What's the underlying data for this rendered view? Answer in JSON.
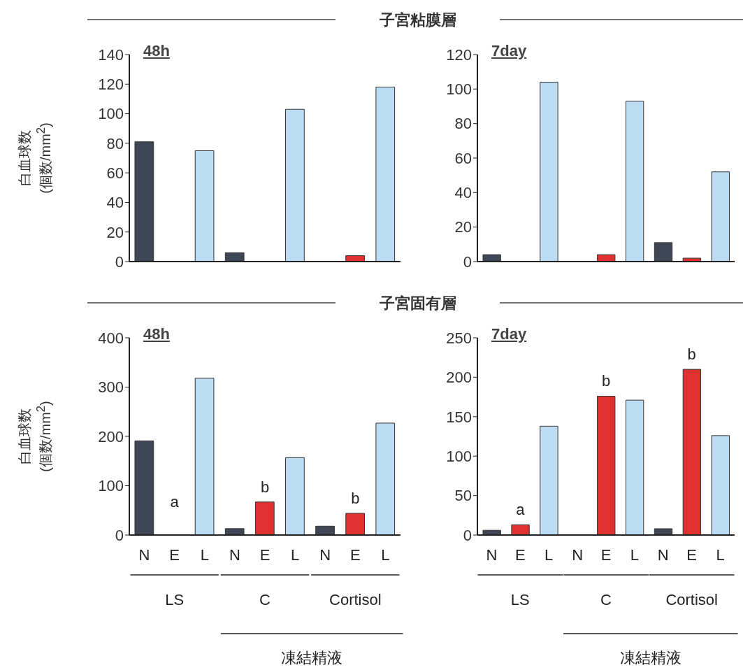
{
  "chart_data": [
    {
      "type": "bar",
      "title": "子宮粘膜層",
      "subtitle": "48h",
      "ylabel": "白血球数\n(個数/mm$^{2}$)",
      "categories": [
        null,
        null,
        null,
        null,
        null,
        null,
        null,
        null,
        null
      ],
      "values": [
        81,
        0,
        75,
        6,
        0,
        103,
        0,
        4,
        118
      ],
      "colors": [
        "#3f4655",
        "#e03030",
        "#bcdcf4",
        "#3f4655",
        "#e03030",
        "#bcdcf4",
        "#3f4655",
        "#e03030",
        "#bcdcf4"
      ],
      "ylim": [
        0,
        140
      ],
      "yticks": [
        0,
        20,
        40,
        60,
        80,
        100,
        120,
        140
      ],
      "grid": false
    },
    {
      "type": "bar",
      "subtitle": "7day",
      "categories": [
        null,
        null,
        null,
        null,
        null,
        null,
        null,
        null,
        null
      ],
      "values": [
        4,
        0,
        104,
        0,
        4,
        93,
        11,
        2,
        52
      ],
      "colors": [
        "#3f4655",
        "#e03030",
        "#bcdcf4",
        "#3f4655",
        "#e03030",
        "#bcdcf4",
        "#3f4655",
        "#e03030",
        "#bcdcf4"
      ],
      "ylim": [
        0,
        120
      ],
      "yticks": [
        0,
        20,
        40,
        60,
        80,
        100,
        120
      ],
      "grid": false
    },
    {
      "type": "bar",
      "title": "子宮固有層",
      "subtitle": "48h",
      "ylabel": "白血球数\n(個数/mm$^{2}$)",
      "categories": [
        "N",
        "E",
        "L",
        "N",
        "E",
        "L",
        "N",
        "E",
        "L"
      ],
      "values": [
        191,
        0,
        318,
        13,
        67,
        157,
        18,
        44,
        227
      ],
      "colors": [
        "#3f4655",
        "#e03030",
        "#bcdcf4",
        "#3f4655",
        "#e03030",
        "#bcdcf4",
        "#3f4655",
        "#e03030",
        "#bcdcf4"
      ],
      "ylim": [
        0,
        400
      ],
      "yticks": [
        0,
        100,
        200,
        300,
        400
      ],
      "value_labels": [
        null,
        "a",
        null,
        null,
        "b",
        null,
        null,
        "b",
        null
      ],
      "annotations": [
        "LS",
        "C",
        "Cortisol",
        "凍結精液"
      ],
      "grid": false
    },
    {
      "type": "bar",
      "subtitle": "7day",
      "categories": [
        "N",
        "E",
        "L",
        "N",
        "E",
        "L",
        "N",
        "E",
        "L"
      ],
      "values": [
        6,
        13,
        138,
        0,
        176,
        171,
        8,
        210,
        126
      ],
      "colors": [
        "#3f4655",
        "#e03030",
        "#bcdcf4",
        "#3f4655",
        "#e03030",
        "#bcdcf4",
        "#3f4655",
        "#e03030",
        "#bcdcf4"
      ],
      "ylim": [
        0,
        250
      ],
      "yticks": [
        0,
        50,
        100,
        150,
        200,
        250
      ],
      "value_labels": [
        null,
        "a",
        null,
        null,
        "b",
        null,
        null,
        "b",
        null
      ],
      "annotations": [
        "LS",
        "C",
        "Cortisol",
        "凍結精液"
      ],
      "grid": false
    }
  ]
}
